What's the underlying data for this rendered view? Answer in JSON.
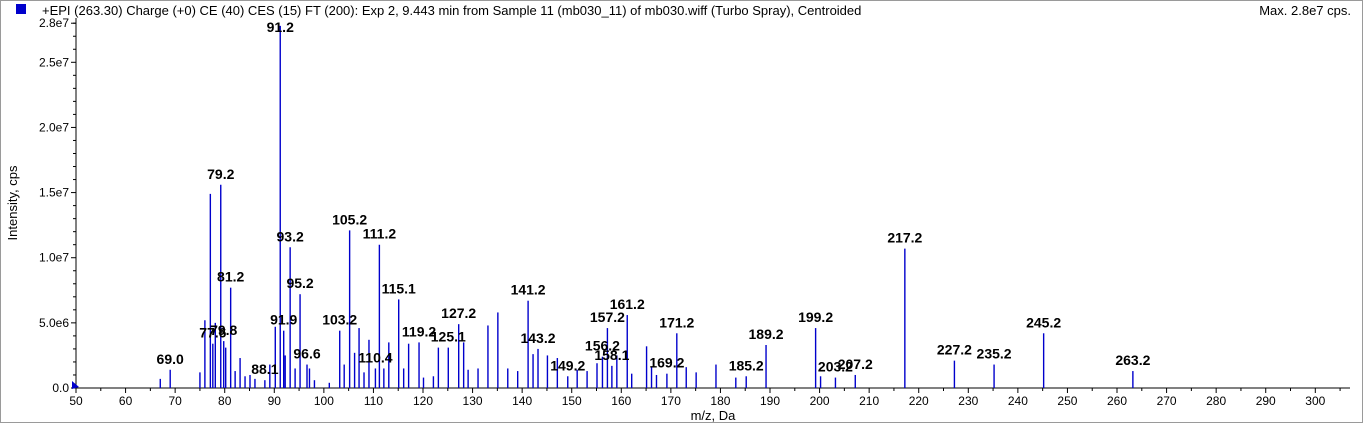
{
  "header": {
    "title": "+EPI (263.30) Charge (+0) CE (40) CES (15) FT (200): Exp 2, 9.443 min from Sample 11 (mb030_11) of mb030.wiff (Turbo Spray), Centroided",
    "max_label": "Max. 2.8e7 cps.",
    "series_color": "#0000cc"
  },
  "chart_data": {
    "type": "bar",
    "xlabel": "m/z, Da",
    "ylabel": "Intensity, cps",
    "xlim": [
      50,
      307
    ],
    "ylim": [
      0,
      28400000
    ],
    "x_ticks": [
      50,
      60,
      70,
      80,
      90,
      100,
      110,
      120,
      130,
      140,
      150,
      160,
      170,
      180,
      190,
      200,
      210,
      220,
      230,
      240,
      250,
      260,
      270,
      280,
      290,
      300
    ],
    "y_ticks": [
      {
        "value": 0,
        "label": "0.0"
      },
      {
        "value": 5000000,
        "label": "5.0e6"
      },
      {
        "value": 10000000,
        "label": "1.0e7"
      },
      {
        "value": 15000000,
        "label": "1.5e7"
      },
      {
        "value": 20000000,
        "label": "2.0e7"
      },
      {
        "value": 25000000,
        "label": "2.5e7"
      },
      {
        "value": 28000000,
        "label": "2.8e7"
      }
    ],
    "peaks": [
      {
        "mz": 67.0,
        "intensity": 700000
      },
      {
        "mz": 69.0,
        "intensity": 1400000
      },
      {
        "mz": 75.0,
        "intensity": 1200000
      },
      {
        "mz": 76.0,
        "intensity": 5200000
      },
      {
        "mz": 77.1,
        "intensity": 14900000
      },
      {
        "mz": 77.6,
        "intensity": 3400000
      },
      {
        "mz": 78.1,
        "intensity": 5000000
      },
      {
        "mz": 79.2,
        "intensity": 15600000
      },
      {
        "mz": 79.8,
        "intensity": 3600000
      },
      {
        "mz": 80.2,
        "intensity": 3100000
      },
      {
        "mz": 81.2,
        "intensity": 7700000
      },
      {
        "mz": 82.1,
        "intensity": 1300000
      },
      {
        "mz": 83.1,
        "intensity": 2300000
      },
      {
        "mz": 84.1,
        "intensity": 900000
      },
      {
        "mz": 85.1,
        "intensity": 1000000
      },
      {
        "mz": 86.1,
        "intensity": 700000
      },
      {
        "mz": 88.1,
        "intensity": 600000
      },
      {
        "mz": 89.1,
        "intensity": 1800000
      },
      {
        "mz": 90.2,
        "intensity": 4700000
      },
      {
        "mz": 91.2,
        "intensity": 27800000
      },
      {
        "mz": 91.9,
        "intensity": 4400000
      },
      {
        "mz": 92.2,
        "intensity": 2500000
      },
      {
        "mz": 93.2,
        "intensity": 10800000
      },
      {
        "mz": 94.2,
        "intensity": 1500000
      },
      {
        "mz": 95.2,
        "intensity": 7200000
      },
      {
        "mz": 96.6,
        "intensity": 1800000
      },
      {
        "mz": 97.1,
        "intensity": 1500000
      },
      {
        "mz": 98.1,
        "intensity": 600000
      },
      {
        "mz": 101.1,
        "intensity": 400000
      },
      {
        "mz": 103.2,
        "intensity": 4400000
      },
      {
        "mz": 104.1,
        "intensity": 1800000
      },
      {
        "mz": 105.2,
        "intensity": 12100000
      },
      {
        "mz": 106.2,
        "intensity": 2700000
      },
      {
        "mz": 107.1,
        "intensity": 4600000
      },
      {
        "mz": 108.1,
        "intensity": 1200000
      },
      {
        "mz": 109.1,
        "intensity": 3700000
      },
      {
        "mz": 110.4,
        "intensity": 1500000
      },
      {
        "mz": 111.2,
        "intensity": 11000000
      },
      {
        "mz": 112.1,
        "intensity": 1500000
      },
      {
        "mz": 113.1,
        "intensity": 3500000
      },
      {
        "mz": 115.1,
        "intensity": 6800000
      },
      {
        "mz": 116.1,
        "intensity": 1500000
      },
      {
        "mz": 117.1,
        "intensity": 3400000
      },
      {
        "mz": 119.2,
        "intensity": 3500000
      },
      {
        "mz": 120.1,
        "intensity": 800000
      },
      {
        "mz": 122.1,
        "intensity": 900000
      },
      {
        "mz": 123.1,
        "intensity": 3100000
      },
      {
        "mz": 125.1,
        "intensity": 3100000
      },
      {
        "mz": 127.2,
        "intensity": 4900000
      },
      {
        "mz": 128.2,
        "intensity": 3500000
      },
      {
        "mz": 129.1,
        "intensity": 1400000
      },
      {
        "mz": 131.1,
        "intensity": 1500000
      },
      {
        "mz": 133.1,
        "intensity": 4800000
      },
      {
        "mz": 135.1,
        "intensity": 5800000
      },
      {
        "mz": 137.1,
        "intensity": 1500000
      },
      {
        "mz": 139.1,
        "intensity": 1300000
      },
      {
        "mz": 141.2,
        "intensity": 6700000
      },
      {
        "mz": 142.2,
        "intensity": 2600000
      },
      {
        "mz": 143.2,
        "intensity": 3000000
      },
      {
        "mz": 145.1,
        "intensity": 2500000
      },
      {
        "mz": 147.1,
        "intensity": 2300000
      },
      {
        "mz": 149.2,
        "intensity": 900000
      },
      {
        "mz": 151.1,
        "intensity": 1400000
      },
      {
        "mz": 153.1,
        "intensity": 1300000
      },
      {
        "mz": 155.1,
        "intensity": 1900000
      },
      {
        "mz": 156.2,
        "intensity": 2400000
      },
      {
        "mz": 157.2,
        "intensity": 4600000
      },
      {
        "mz": 158.1,
        "intensity": 1700000
      },
      {
        "mz": 159.1,
        "intensity": 2500000
      },
      {
        "mz": 161.2,
        "intensity": 5600000
      },
      {
        "mz": 162.1,
        "intensity": 1100000
      },
      {
        "mz": 165.1,
        "intensity": 3200000
      },
      {
        "mz": 166.1,
        "intensity": 1600000
      },
      {
        "mz": 167.1,
        "intensity": 1000000
      },
      {
        "mz": 169.2,
        "intensity": 1100000
      },
      {
        "mz": 171.2,
        "intensity": 4200000
      },
      {
        "mz": 173.1,
        "intensity": 1600000
      },
      {
        "mz": 175.1,
        "intensity": 1200000
      },
      {
        "mz": 179.1,
        "intensity": 1800000
      },
      {
        "mz": 183.1,
        "intensity": 800000
      },
      {
        "mz": 185.2,
        "intensity": 900000
      },
      {
        "mz": 189.2,
        "intensity": 3300000
      },
      {
        "mz": 199.2,
        "intensity": 4600000
      },
      {
        "mz": 200.2,
        "intensity": 900000
      },
      {
        "mz": 203.2,
        "intensity": 800000
      },
      {
        "mz": 207.2,
        "intensity": 1000000
      },
      {
        "mz": 217.2,
        "intensity": 10700000
      },
      {
        "mz": 227.2,
        "intensity": 2100000
      },
      {
        "mz": 235.2,
        "intensity": 1800000
      },
      {
        "mz": 245.2,
        "intensity": 4200000
      },
      {
        "mz": 263.2,
        "intensity": 1300000
      }
    ],
    "labels": [
      {
        "text": "69.0",
        "mz": 69.0,
        "intensity": 1400000
      },
      {
        "text": "77.6",
        "mz": 77.6,
        "intensity": 3400000
      },
      {
        "text": "79.2",
        "mz": 79.2,
        "intensity": 15600000
      },
      {
        "text": "79.8",
        "mz": 79.8,
        "intensity": 3600000
      },
      {
        "text": "81.2",
        "mz": 81.2,
        "intensity": 7700000
      },
      {
        "text": "88.1",
        "mz": 88.1,
        "intensity": 600000
      },
      {
        "text": "91.2",
        "mz": 91.2,
        "intensity": 27800000
      },
      {
        "text": "91.9",
        "mz": 91.9,
        "intensity": 4400000
      },
      {
        "text": "93.2",
        "mz": 93.2,
        "intensity": 10800000
      },
      {
        "text": "95.2",
        "mz": 95.2,
        "intensity": 7200000
      },
      {
        "text": "96.6",
        "mz": 96.6,
        "intensity": 1800000
      },
      {
        "text": "103.2",
        "mz": 103.2,
        "intensity": 4400000
      },
      {
        "text": "105.2",
        "mz": 105.2,
        "intensity": 12100000
      },
      {
        "text": "110.4",
        "mz": 110.4,
        "intensity": 1500000
      },
      {
        "text": "111.2",
        "mz": 111.2,
        "intensity": 11000000
      },
      {
        "text": "115.1",
        "mz": 115.1,
        "intensity": 6800000
      },
      {
        "text": "119.2",
        "mz": 119.2,
        "intensity": 3500000
      },
      {
        "text": "125.1",
        "mz": 125.1,
        "intensity": 3100000
      },
      {
        "text": "127.2",
        "mz": 127.2,
        "intensity": 4900000
      },
      {
        "text": "141.2",
        "mz": 141.2,
        "intensity": 6700000
      },
      {
        "text": "143.2",
        "mz": 143.2,
        "intensity": 3000000
      },
      {
        "text": "149.2",
        "mz": 149.2,
        "intensity": 900000
      },
      {
        "text": "156.2",
        "mz": 156.2,
        "intensity": 2400000
      },
      {
        "text": "157.2",
        "mz": 157.2,
        "intensity": 4600000
      },
      {
        "text": "158.1",
        "mz": 158.1,
        "intensity": 1700000
      },
      {
        "text": "161.2",
        "mz": 161.2,
        "intensity": 5600000
      },
      {
        "text": "169.2",
        "mz": 169.2,
        "intensity": 1100000
      },
      {
        "text": "171.2",
        "mz": 171.2,
        "intensity": 4200000
      },
      {
        "text": "185.2",
        "mz": 185.2,
        "intensity": 900000
      },
      {
        "text": "189.2",
        "mz": 189.2,
        "intensity": 3300000
      },
      {
        "text": "199.2",
        "mz": 199.2,
        "intensity": 4600000
      },
      {
        "text": "203.2",
        "mz": 203.2,
        "intensity": 800000
      },
      {
        "text": "207.2",
        "mz": 207.2,
        "intensity": 1000000
      },
      {
        "text": "217.2",
        "mz": 217.2,
        "intensity": 10700000
      },
      {
        "text": "227.2",
        "mz": 227.2,
        "intensity": 2100000
      },
      {
        "text": "235.2",
        "mz": 235.2,
        "intensity": 1800000
      },
      {
        "text": "245.2",
        "mz": 245.2,
        "intensity": 4200000
      },
      {
        "text": "263.2",
        "mz": 263.2,
        "intensity": 1300000
      }
    ]
  }
}
